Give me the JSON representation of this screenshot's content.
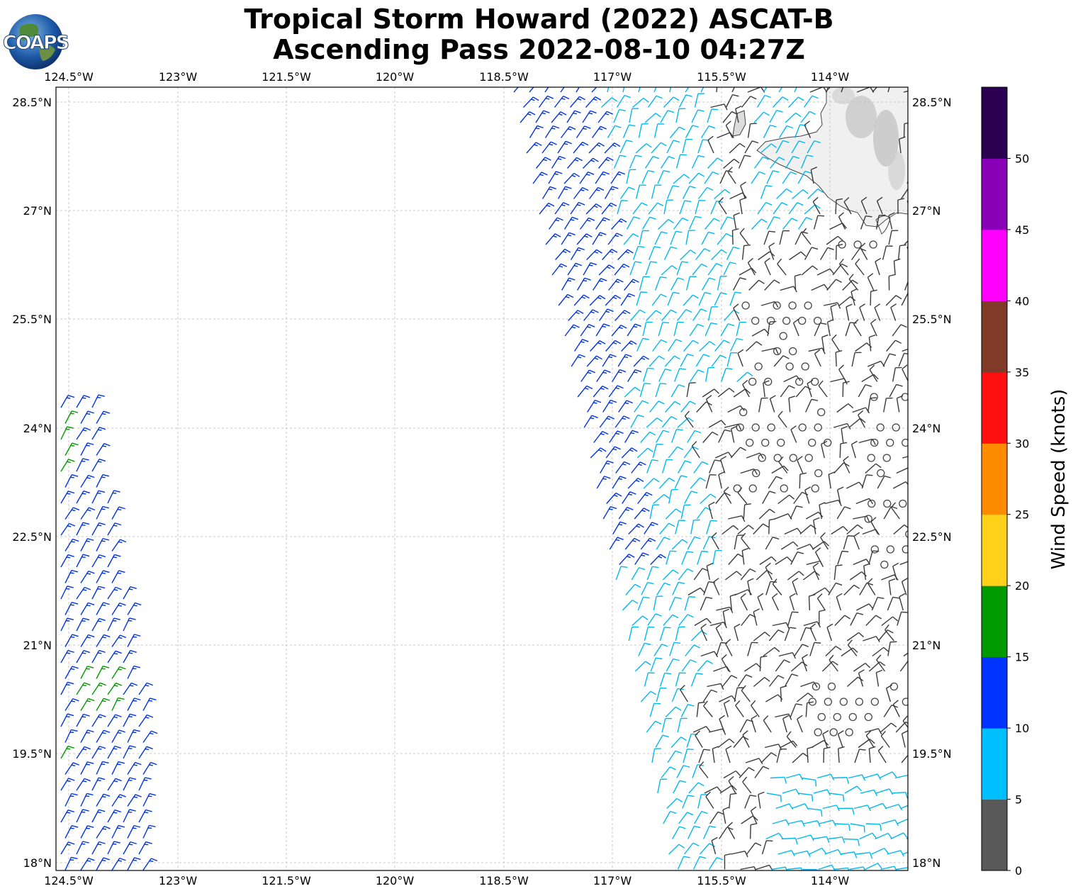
{
  "title_line1": "Tropical Storm Howard (2022) ASCAT-B",
  "title_line2": "Ascending Pass 2022-08-10 04:27Z",
  "logo_text": "COAPS",
  "map": {
    "lon_ticks": [
      "124.5°W",
      "123°W",
      "121.5°W",
      "120°W",
      "118.5°W",
      "117°W",
      "115.5°W",
      "114°W"
    ],
    "lat_ticks": [
      "28.5°N",
      "27°N",
      "25.5°N",
      "24°N",
      "22.5°N",
      "21°N",
      "19.5°N",
      "18°N"
    ],
    "gridlines": true
  },
  "colorbar": {
    "label": "Wind Speed (knots)",
    "ticks": [
      "0",
      "5",
      "10",
      "15",
      "20",
      "25",
      "30",
      "35",
      "40",
      "45",
      "50"
    ],
    "colors": [
      "#595959",
      "#00bfff",
      "#0033ff",
      "#009900",
      "#ffd11a",
      "#ff8c00",
      "#ff1010",
      "#7f3a28",
      "#ff00ff",
      "#8a00b8",
      "#2b0050"
    ]
  }
}
